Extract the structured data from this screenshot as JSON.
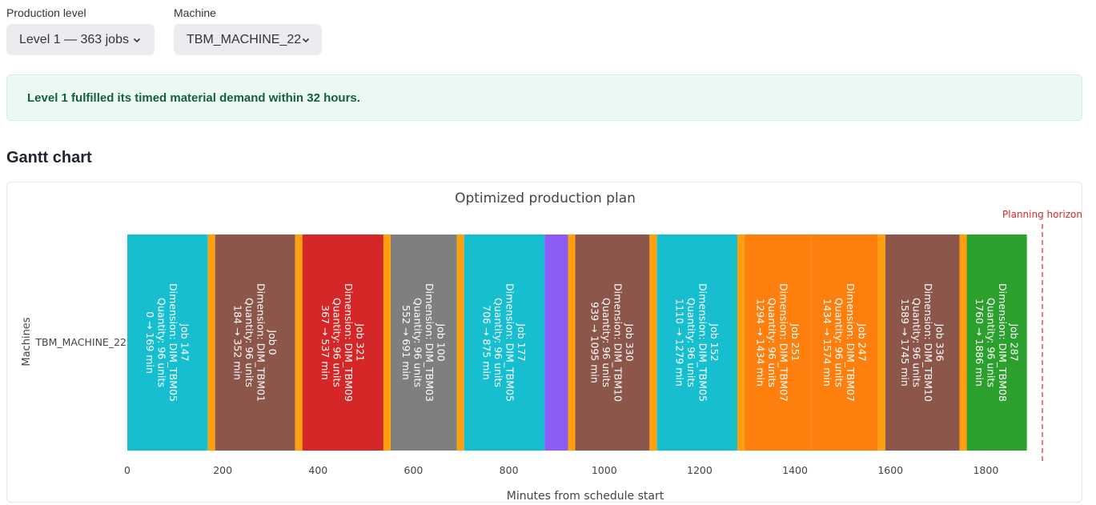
{
  "controls": {
    "production_level": {
      "label": "Production level",
      "value": "Level 1 — 363 jobs"
    },
    "machine": {
      "label": "Machine",
      "value": "TBM_MACHINE_22"
    }
  },
  "alert": {
    "message": "Level 1 fulfilled its timed material demand within 32 hours."
  },
  "section": {
    "title": "Gantt chart"
  },
  "chart_data": {
    "type": "gantt",
    "title": "Optimized production plan",
    "xlabel": "Minutes from schedule start",
    "ylabel": "Machines",
    "xlim": [
      0,
      1900
    ],
    "xticks": [
      0,
      200,
      400,
      600,
      800,
      1000,
      1200,
      1400,
      1600,
      1800
    ],
    "machine": "TBM_MACHINE_22",
    "horizon": {
      "label": "Planning horizon",
      "color": "#d62728"
    },
    "setup_color": "#ff9f0e",
    "jobs": [
      {
        "job": "Job 147",
        "dimension": "Dimension: DIM_TBM05",
        "quantity": "Quantity: 96 units",
        "time": "0 → 169 min",
        "start": 0,
        "end": 169,
        "color": "#17becf"
      },
      {
        "job": "Job 0",
        "dimension": "Dimension: DIM_TBM01",
        "quantity": "Quantity: 96 units",
        "time": "184 → 352 min",
        "start": 184,
        "end": 352,
        "color": "#8c564b"
      },
      {
        "job": "Job 321",
        "dimension": "Dimension: DIM_TBM09",
        "quantity": "Quantity: 96 units",
        "time": "367 → 537 min",
        "start": 367,
        "end": 537,
        "color": "#d62728"
      },
      {
        "job": "Job 100",
        "dimension": "Dimension: DIM_TBM03",
        "quantity": "Quantity: 96 units",
        "time": "552 → 691 min",
        "start": 552,
        "end": 691,
        "color": "#7f7f7f"
      },
      {
        "job": "Job 177",
        "dimension": "Dimension: DIM_TBM05",
        "quantity": "Quantity: 96 units",
        "time": "706 → 875 min",
        "start": 706,
        "end": 875,
        "color": "#17becf"
      },
      {
        "job": "",
        "dimension": "",
        "quantity": "",
        "time": "",
        "start": 875,
        "end": 924,
        "color": "#8b5cf6"
      },
      {
        "job": "Job 330",
        "dimension": "Dimension: DIM_TBM10",
        "quantity": "Quantity: 96 units",
        "time": "939 → 1095 min",
        "start": 939,
        "end": 1095,
        "color": "#8c564b"
      },
      {
        "job": "Job 152",
        "dimension": "Dimension: DIM_TBM05",
        "quantity": "Quantity: 96 units",
        "time": "1110 → 1279 min",
        "start": 1110,
        "end": 1279,
        "color": "#17becf"
      },
      {
        "job": "Job 251",
        "dimension": "Dimension: DIM_TBM07",
        "quantity": "Quantity: 96 units",
        "time": "1294 → 1434 min",
        "start": 1294,
        "end": 1434,
        "color": "#ff7f0e"
      },
      {
        "job": "Job 247",
        "dimension": "Dimension: DIM_TBM07",
        "quantity": "Quantity: 96 units",
        "time": "1434 → 1574 min",
        "start": 1434,
        "end": 1574,
        "color": "#ff7f0e"
      },
      {
        "job": "Job 336",
        "dimension": "Dimension: DIM_TBM10",
        "quantity": "Quantity: 96 units",
        "time": "1589 → 1745 min",
        "start": 1589,
        "end": 1745,
        "color": "#8c564b"
      },
      {
        "job": "Job 287",
        "dimension": "Dimension: DIM_TBM08",
        "quantity": "Quantity: 96 units",
        "time": "1760 → 1886 min",
        "start": 1760,
        "end": 1886,
        "color": "#2ca02c"
      }
    ],
    "setups": [
      {
        "start": 169,
        "end": 184
      },
      {
        "start": 352,
        "end": 367
      },
      {
        "start": 537,
        "end": 552
      },
      {
        "start": 691,
        "end": 706
      },
      {
        "start": 924,
        "end": 939
      },
      {
        "start": 1095,
        "end": 1110
      },
      {
        "start": 1279,
        "end": 1294
      },
      {
        "start": 1574,
        "end": 1589
      },
      {
        "start": 1745,
        "end": 1760
      }
    ]
  }
}
